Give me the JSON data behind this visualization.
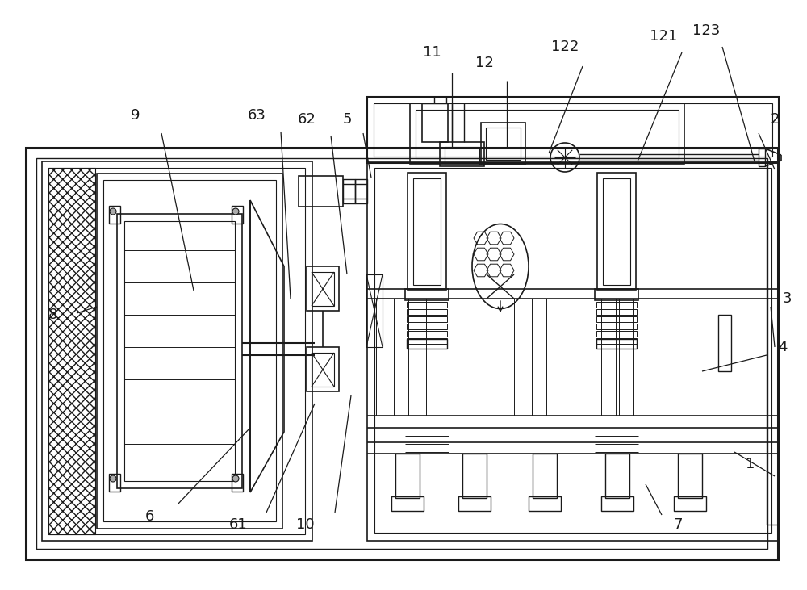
{
  "bg": "#ffffff",
  "lc": "#1a1a1a",
  "figw": 10.0,
  "figh": 7.31,
  "dpi": 100,
  "labels": [
    [
      "1",
      930,
      575,
      910,
      560,
      960,
      590
    ],
    [
      "2",
      960,
      148,
      940,
      165,
      960,
      210
    ],
    [
      "3",
      975,
      370,
      955,
      380,
      960,
      430
    ],
    [
      "4",
      970,
      430,
      950,
      440,
      870,
      460
    ],
    [
      "5",
      430,
      148,
      450,
      165,
      460,
      220
    ],
    [
      "6",
      185,
      640,
      220,
      625,
      310,
      530
    ],
    [
      "61",
      295,
      650,
      330,
      635,
      390,
      500
    ],
    [
      "62",
      380,
      148,
      410,
      168,
      430,
      340
    ],
    [
      "63",
      318,
      143,
      348,
      163,
      360,
      370
    ],
    [
      "7",
      840,
      650,
      820,
      638,
      800,
      600
    ],
    [
      "8",
      65,
      390,
      95,
      388,
      120,
      380
    ],
    [
      "9",
      168,
      143,
      200,
      165,
      240,
      360
    ],
    [
      "10",
      378,
      650,
      415,
      635,
      435,
      490
    ],
    [
      "11",
      535,
      65,
      560,
      90,
      560,
      183
    ],
    [
      "12",
      600,
      78,
      628,
      100,
      628,
      183
    ],
    [
      "121",
      822,
      45,
      845,
      65,
      790,
      200
    ],
    [
      "122",
      700,
      58,
      722,
      82,
      680,
      190
    ],
    [
      "123",
      875,
      38,
      895,
      58,
      935,
      200
    ]
  ]
}
